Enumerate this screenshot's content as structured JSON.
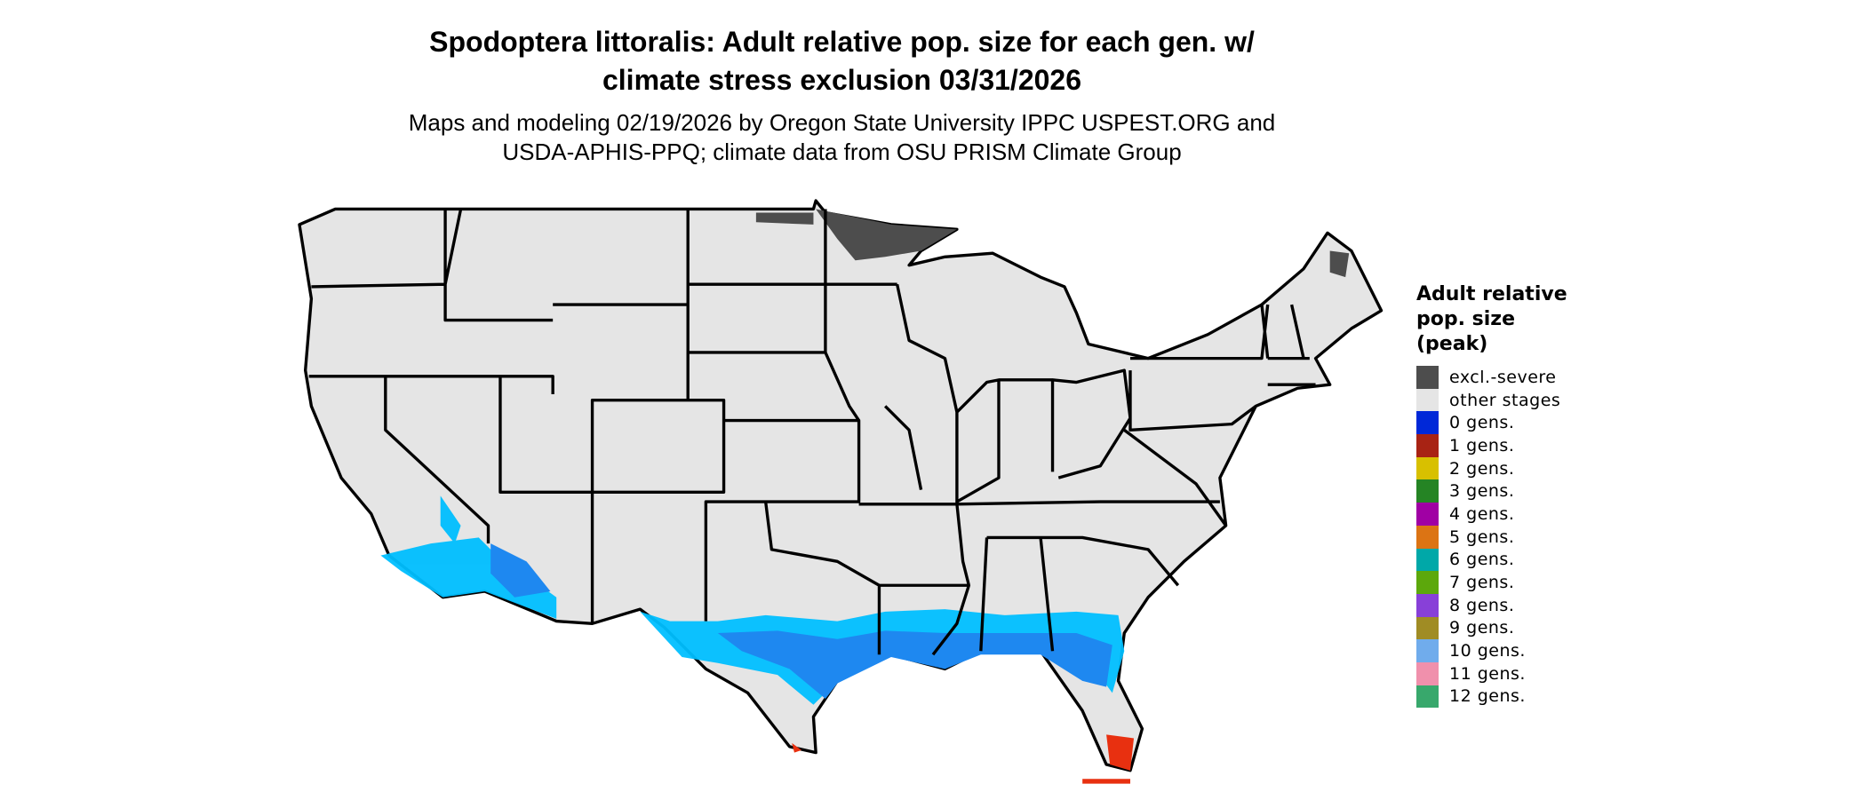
{
  "chart_data": {
    "type": "map",
    "title": "Spodoptera littoralis: Adult relative pop. size for each gen. w/ climate stress exclusion 03/31/2026",
    "title_lines": [
      "Spodoptera littoralis: Adult relative pop. size for each gen. w/",
      "climate stress exclusion 03/31/2026"
    ],
    "subtitle_lines": [
      "Maps and modeling 02/19/2026 by Oregon State University IPPC USPEST.ORG and",
      "USDA-APHIS-PPQ; climate data from OSU PRISM Climate Group"
    ],
    "region": "Contiguous United States",
    "legend": {
      "title_lines": [
        "Adult relative",
        "pop. size",
        "(peak)"
      ],
      "placement": "right",
      "items": [
        {
          "label": "excl.-severe",
          "color": "#4d4d4d"
        },
        {
          "label": "other stages",
          "color": "#e5e5e5"
        },
        {
          "label": "0 gens.",
          "color": "#0028d8"
        },
        {
          "label": "1 gens.",
          "color": "#a82314"
        },
        {
          "label": "2 gens.",
          "color": "#d8c000"
        },
        {
          "label": "3 gens.",
          "color": "#258424"
        },
        {
          "label": "4 gens.",
          "color": "#a000a4"
        },
        {
          "label": "5 gens.",
          "color": "#dc7414"
        },
        {
          "label": "6 gens.",
          "color": "#00a8a8"
        },
        {
          "label": "7 gens.",
          "color": "#5ca80c"
        },
        {
          "label": "8 gens.",
          "color": "#8840d8"
        },
        {
          "label": "9 gens.",
          "color": "#a08c24"
        },
        {
          "label": "10 gens.",
          "color": "#70acec"
        },
        {
          "label": "11 gens.",
          "color": "#f090ac"
        },
        {
          "label": "12 gens.",
          "color": "#38a86c"
        }
      ]
    },
    "map_colors": {
      "state_border": "#000000",
      "light_blue_zone": "#00bfff",
      "blue_zone": "#1e88f0",
      "red_zone": "#e83010"
    }
  }
}
